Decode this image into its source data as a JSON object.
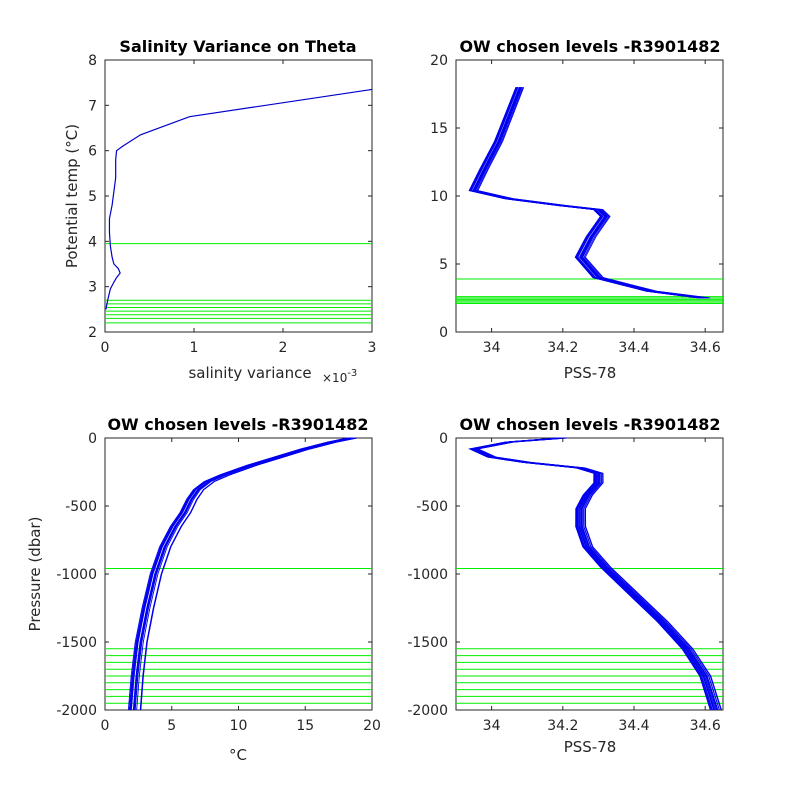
{
  "chart_data": [
    {
      "type": "line",
      "title": "Salinity Variance on Theta",
      "xlabel": "salinity variance",
      "x_multiplier": "×10",
      "x_multiplier_exp": "-3",
      "ylabel": "Potential temp (°C)",
      "xlim": [
        0,
        3
      ],
      "ylim": [
        2,
        8
      ],
      "x_ticks": [
        "0",
        "1",
        "2",
        "3"
      ],
      "y_ticks": [
        "2",
        "3",
        "4",
        "5",
        "6",
        "7",
        "8"
      ],
      "series_color": "#0000cc",
      "hline_color": "#00ee00",
      "series": [
        {
          "x": [
            0.01,
            0.03,
            0.06,
            0.1,
            0.13,
            0.17,
            0.15,
            0.1,
            0.08,
            0.06,
            0.05,
            0.05,
            0.08,
            0.1,
            0.12,
            0.12,
            0.13,
            0.2,
            0.4,
            0.95,
            3.0
          ],
          "y": [
            2.5,
            2.7,
            2.95,
            3.1,
            3.2,
            3.3,
            3.4,
            3.5,
            3.65,
            3.9,
            4.2,
            4.5,
            4.8,
            5.1,
            5.4,
            5.8,
            6.0,
            6.1,
            6.35,
            6.75,
            7.35
          ]
        }
      ],
      "hlines": [
        2.2,
        2.3,
        2.38,
        2.46,
        2.54,
        2.62,
        2.7,
        3.95
      ]
    },
    {
      "type": "line",
      "title": "OW chosen levels -R3901482",
      "xlabel": "PSS-78",
      "ylabel": "",
      "xlim": [
        33.9,
        34.65
      ],
      "ylim": [
        0,
        20
      ],
      "x_ticks": [
        "34",
        "34.2",
        "34.4",
        "34.6"
      ],
      "x_tick_values": [
        34,
        34.2,
        34.4,
        34.6
      ],
      "y_ticks": [
        "0",
        "5",
        "10",
        "15",
        "20"
      ],
      "series_color": "#0000ee",
      "hline_color": "#00ee00",
      "series": [
        {
          "x": [
            34.6,
            34.45,
            34.3,
            34.25,
            34.28,
            34.32,
            34.3,
            34.2,
            34.05,
            33.95,
            33.98,
            34.02,
            34.05,
            34.08
          ],
          "y": [
            2.5,
            3.0,
            4.0,
            5.5,
            7.0,
            8.5,
            9.0,
            9.3,
            9.8,
            10.4,
            12,
            14,
            16,
            18
          ]
        }
      ],
      "hlines": [
        2.1,
        2.2,
        2.3,
        2.4,
        2.5,
        2.6,
        3.9
      ]
    },
    {
      "type": "line",
      "title": "OW chosen levels -R3901482",
      "xlabel": "°C",
      "ylabel": "Pressure (dbar)",
      "xlim": [
        0,
        20
      ],
      "ylim": [
        -2000,
        0
      ],
      "x_ticks": [
        "0",
        "5",
        "10",
        "15",
        "20"
      ],
      "y_ticks": [
        "-2000",
        "-1500",
        "-1000",
        "-500",
        "0"
      ],
      "series_color": "#0000ee",
      "hline_color": "#00ee00",
      "series": [
        {
          "x": [
            2.2,
            2.4,
            2.7,
            3.2,
            3.8,
            4.5,
            5.3,
            6.0,
            6.5,
            7.0,
            7.8,
            9.0,
            11,
            13,
            15,
            17,
            18.5
          ],
          "y": [
            -2000,
            -1750,
            -1500,
            -1250,
            -1000,
            -800,
            -650,
            -550,
            -450,
            -380,
            -320,
            -270,
            -200,
            -140,
            -80,
            -30,
            0
          ]
        }
      ],
      "hlines": [
        -1950,
        -1900,
        -1850,
        -1800,
        -1750,
        -1700,
        -1650,
        -1600,
        -1550,
        -960
      ]
    },
    {
      "type": "line",
      "title": "OW chosen levels -R3901482",
      "xlabel": "PSS-78",
      "ylabel": "",
      "xlim": [
        33.9,
        34.65
      ],
      "ylim": [
        -2000,
        0
      ],
      "x_ticks": [
        "34",
        "34.2",
        "34.4",
        "34.6"
      ],
      "x_tick_values": [
        34,
        34.2,
        34.4,
        34.6
      ],
      "y_ticks": [
        "-2000",
        "-1500",
        "-1000",
        "-500",
        "0"
      ],
      "series_color": "#0000ee",
      "hline_color": "#00ee00",
      "series": [
        {
          "x": [
            34.63,
            34.6,
            34.55,
            34.48,
            34.4,
            34.32,
            34.27,
            34.25,
            34.25,
            34.27,
            34.3,
            34.3,
            34.25,
            34.1,
            34.0,
            33.95,
            34.05,
            34.2
          ],
          "y": [
            -2000,
            -1750,
            -1550,
            -1350,
            -1150,
            -950,
            -800,
            -650,
            -520,
            -420,
            -330,
            -260,
            -220,
            -180,
            -140,
            -80,
            -30,
            0
          ]
        }
      ],
      "hlines": [
        -1950,
        -1900,
        -1850,
        -1800,
        -1750,
        -1700,
        -1650,
        -1600,
        -1550,
        -960
      ]
    }
  ]
}
